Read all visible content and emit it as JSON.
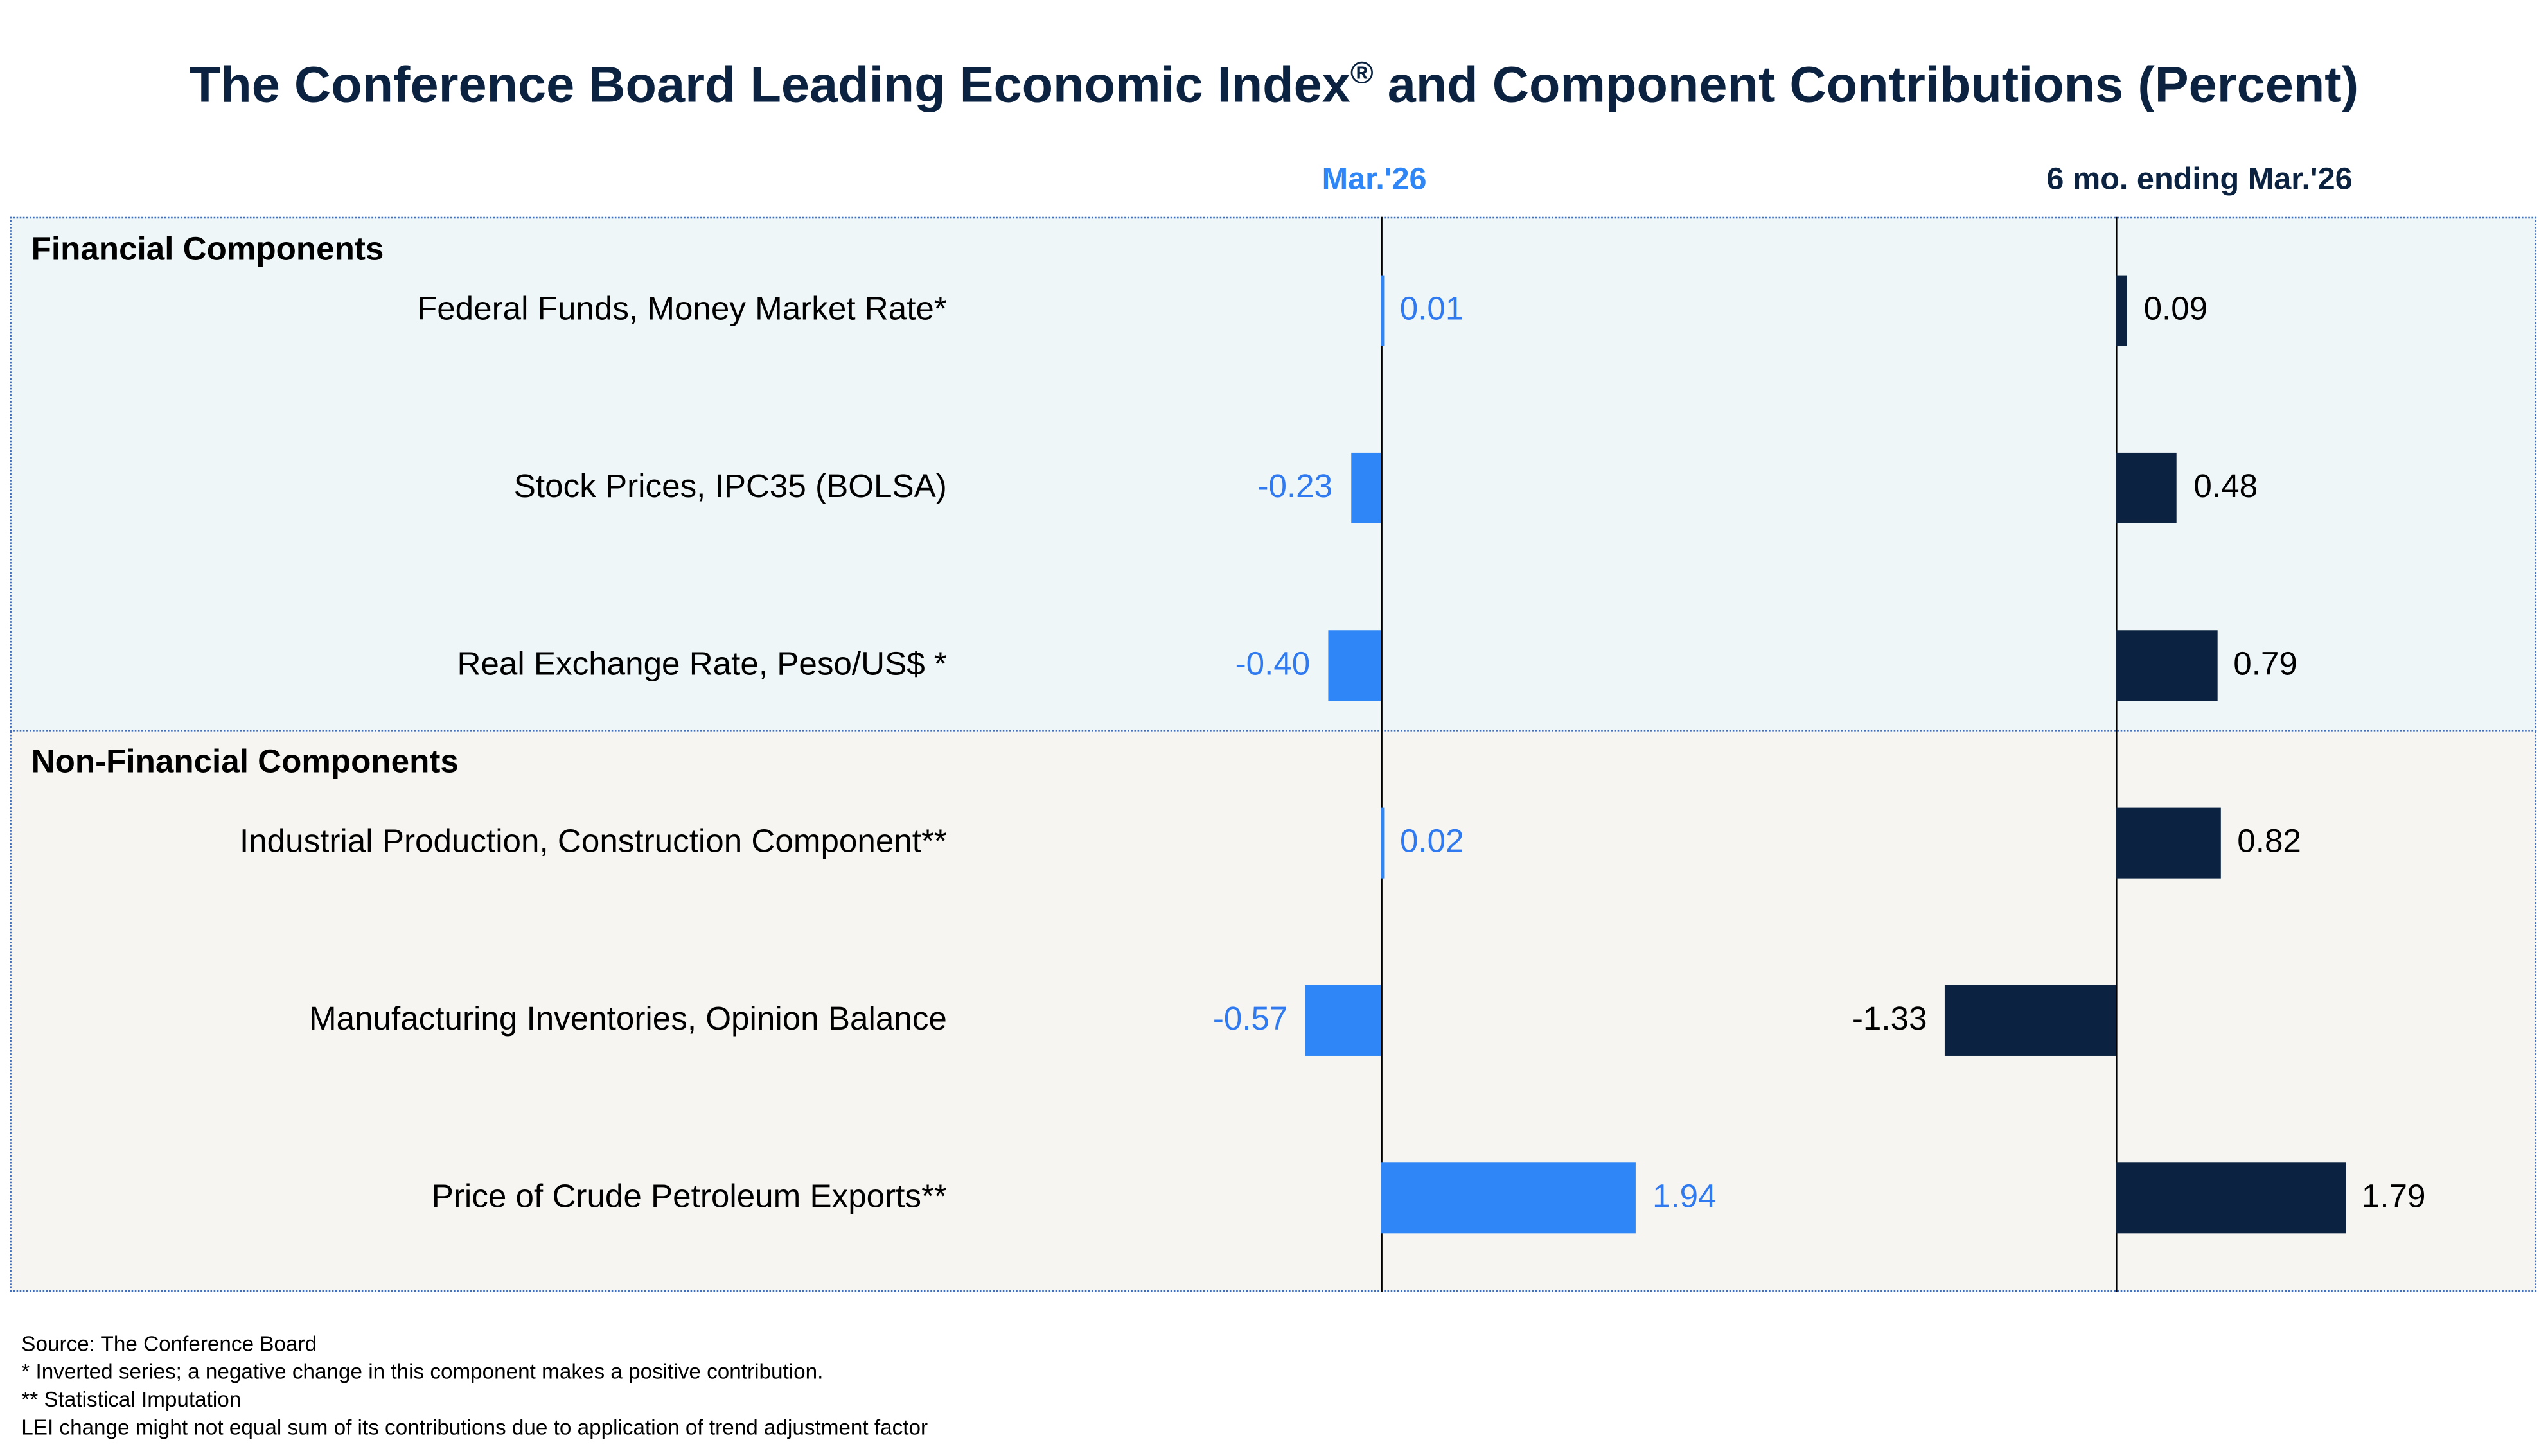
{
  "chart_data": {
    "type": "bar",
    "orientation": "horizontal",
    "title": "The Conference Board Leading Economic Index",
    "title_mark": "®",
    "title_suffix": " and Component Contributions (Percent)",
    "sections": [
      {
        "name": "Financial Components",
        "rows": [
          0,
          1,
          2
        ]
      },
      {
        "name": "Non-Financial Components",
        "rows": [
          3,
          4,
          5
        ]
      }
    ],
    "categories": [
      "Federal Funds, Money Market Rate*",
      "Stock Prices, IPC35 (BOLSA)",
      "Real Exchange Rate, Peso/US$ *",
      "Industrial Production, Construction Component**",
      "Manufacturing Inventories, Opinion Balance",
      "Price of Crude Petroleum Exports**"
    ],
    "series": [
      {
        "name": "Mar.'26",
        "color": "#2f86f6",
        "values": [
          0.01,
          -0.23,
          -0.4,
          0.02,
          -0.57,
          1.94
        ],
        "labels": [
          "0.01",
          "-0.23",
          "-0.40",
          "0.02",
          "-0.57",
          "1.94"
        ],
        "label_color": "#2f7af0"
      },
      {
        "name": "6 mo. ending Mar.'26",
        "color": "#0b2341",
        "values": [
          0.09,
          0.48,
          0.79,
          0.82,
          -1.33,
          1.79
        ],
        "labels": [
          "0.09",
          "0.48",
          "0.79",
          "0.82",
          "-1.33",
          "1.79"
        ],
        "label_color": "#000000"
      }
    ]
  },
  "colors": {
    "title": "#0b2341",
    "financial_bg": "#eef6f8",
    "nonfinancial_bg": "#f6f5f2"
  },
  "footnotes": [
    "Source: The Conference Board",
    "*  Inverted series; a negative change in this component makes a positive contribution.",
    "** Statistical Imputation",
    "LEI change might not equal sum of its contributions due to application of trend adjustment factor"
  ]
}
